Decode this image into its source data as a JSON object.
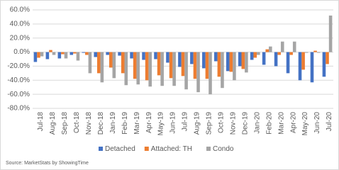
{
  "chart_data": {
    "type": "bar",
    "categories": [
      "Jul-18",
      "Aug-18",
      "Sep-18",
      "Oct-18",
      "Nov-18",
      "Dec-18",
      "Jan-19",
      "Feb-19",
      "Mar-19",
      "Apr-19",
      "May-19",
      "Jun-19",
      "Jul-19",
      "Aug-19",
      "Sep-19",
      "Oct-19",
      "Nov-19",
      "Dec-19",
      "Jan-20",
      "Feb-20",
      "Mar-20",
      "Apr-20",
      "May-20",
      "Jun-20",
      "Jul-20"
    ],
    "series": [
      {
        "name": "Detached",
        "color": "#4472c4",
        "values": [
          -14,
          -10,
          -9,
          -4,
          -1,
          -7,
          -4,
          -5,
          -9,
          -11,
          -10,
          -15,
          -21,
          -17,
          -23,
          -13,
          -27,
          -20,
          -11,
          -18,
          -20,
          -30,
          -40,
          -43,
          -35
        ]
      },
      {
        "name": "Attached: TH",
        "color": "#ed7d31",
        "values": [
          -8,
          3,
          -3,
          -2,
          -4,
          -30,
          -22,
          -30,
          -38,
          -40,
          -33,
          -37,
          -34,
          -38,
          -38,
          -35,
          -28,
          -24,
          -8,
          4,
          -4,
          -4,
          -25,
          2,
          -17
        ]
      },
      {
        "name": "Condo",
        "color": "#a5a5a5",
        "values": [
          -6,
          -4,
          -9,
          -12,
          -30,
          -43,
          -37,
          -47,
          -46,
          -49,
          -48,
          -48,
          -53,
          -57,
          -60,
          -51,
          -40,
          -29,
          -4,
          8,
          15,
          15,
          -1,
          -1,
          52
        ]
      }
    ],
    "ylim": [
      -80,
      60
    ],
    "yticks": [
      {
        "value": -80,
        "label": "-80.0%"
      },
      {
        "value": -60,
        "label": "-60.0%"
      },
      {
        "value": -40,
        "label": "-40.0%"
      },
      {
        "value": -20,
        "label": "-20.0%"
      },
      {
        "value": 0,
        "label": "0.0%"
      },
      {
        "value": 20,
        "label": "20.0%"
      },
      {
        "value": 40,
        "label": "40.0%"
      },
      {
        "value": 60,
        "label": "60.0%"
      }
    ],
    "grid": true,
    "legend": "bottom",
    "source": "Source: MarketStats by ShowingTime"
  }
}
